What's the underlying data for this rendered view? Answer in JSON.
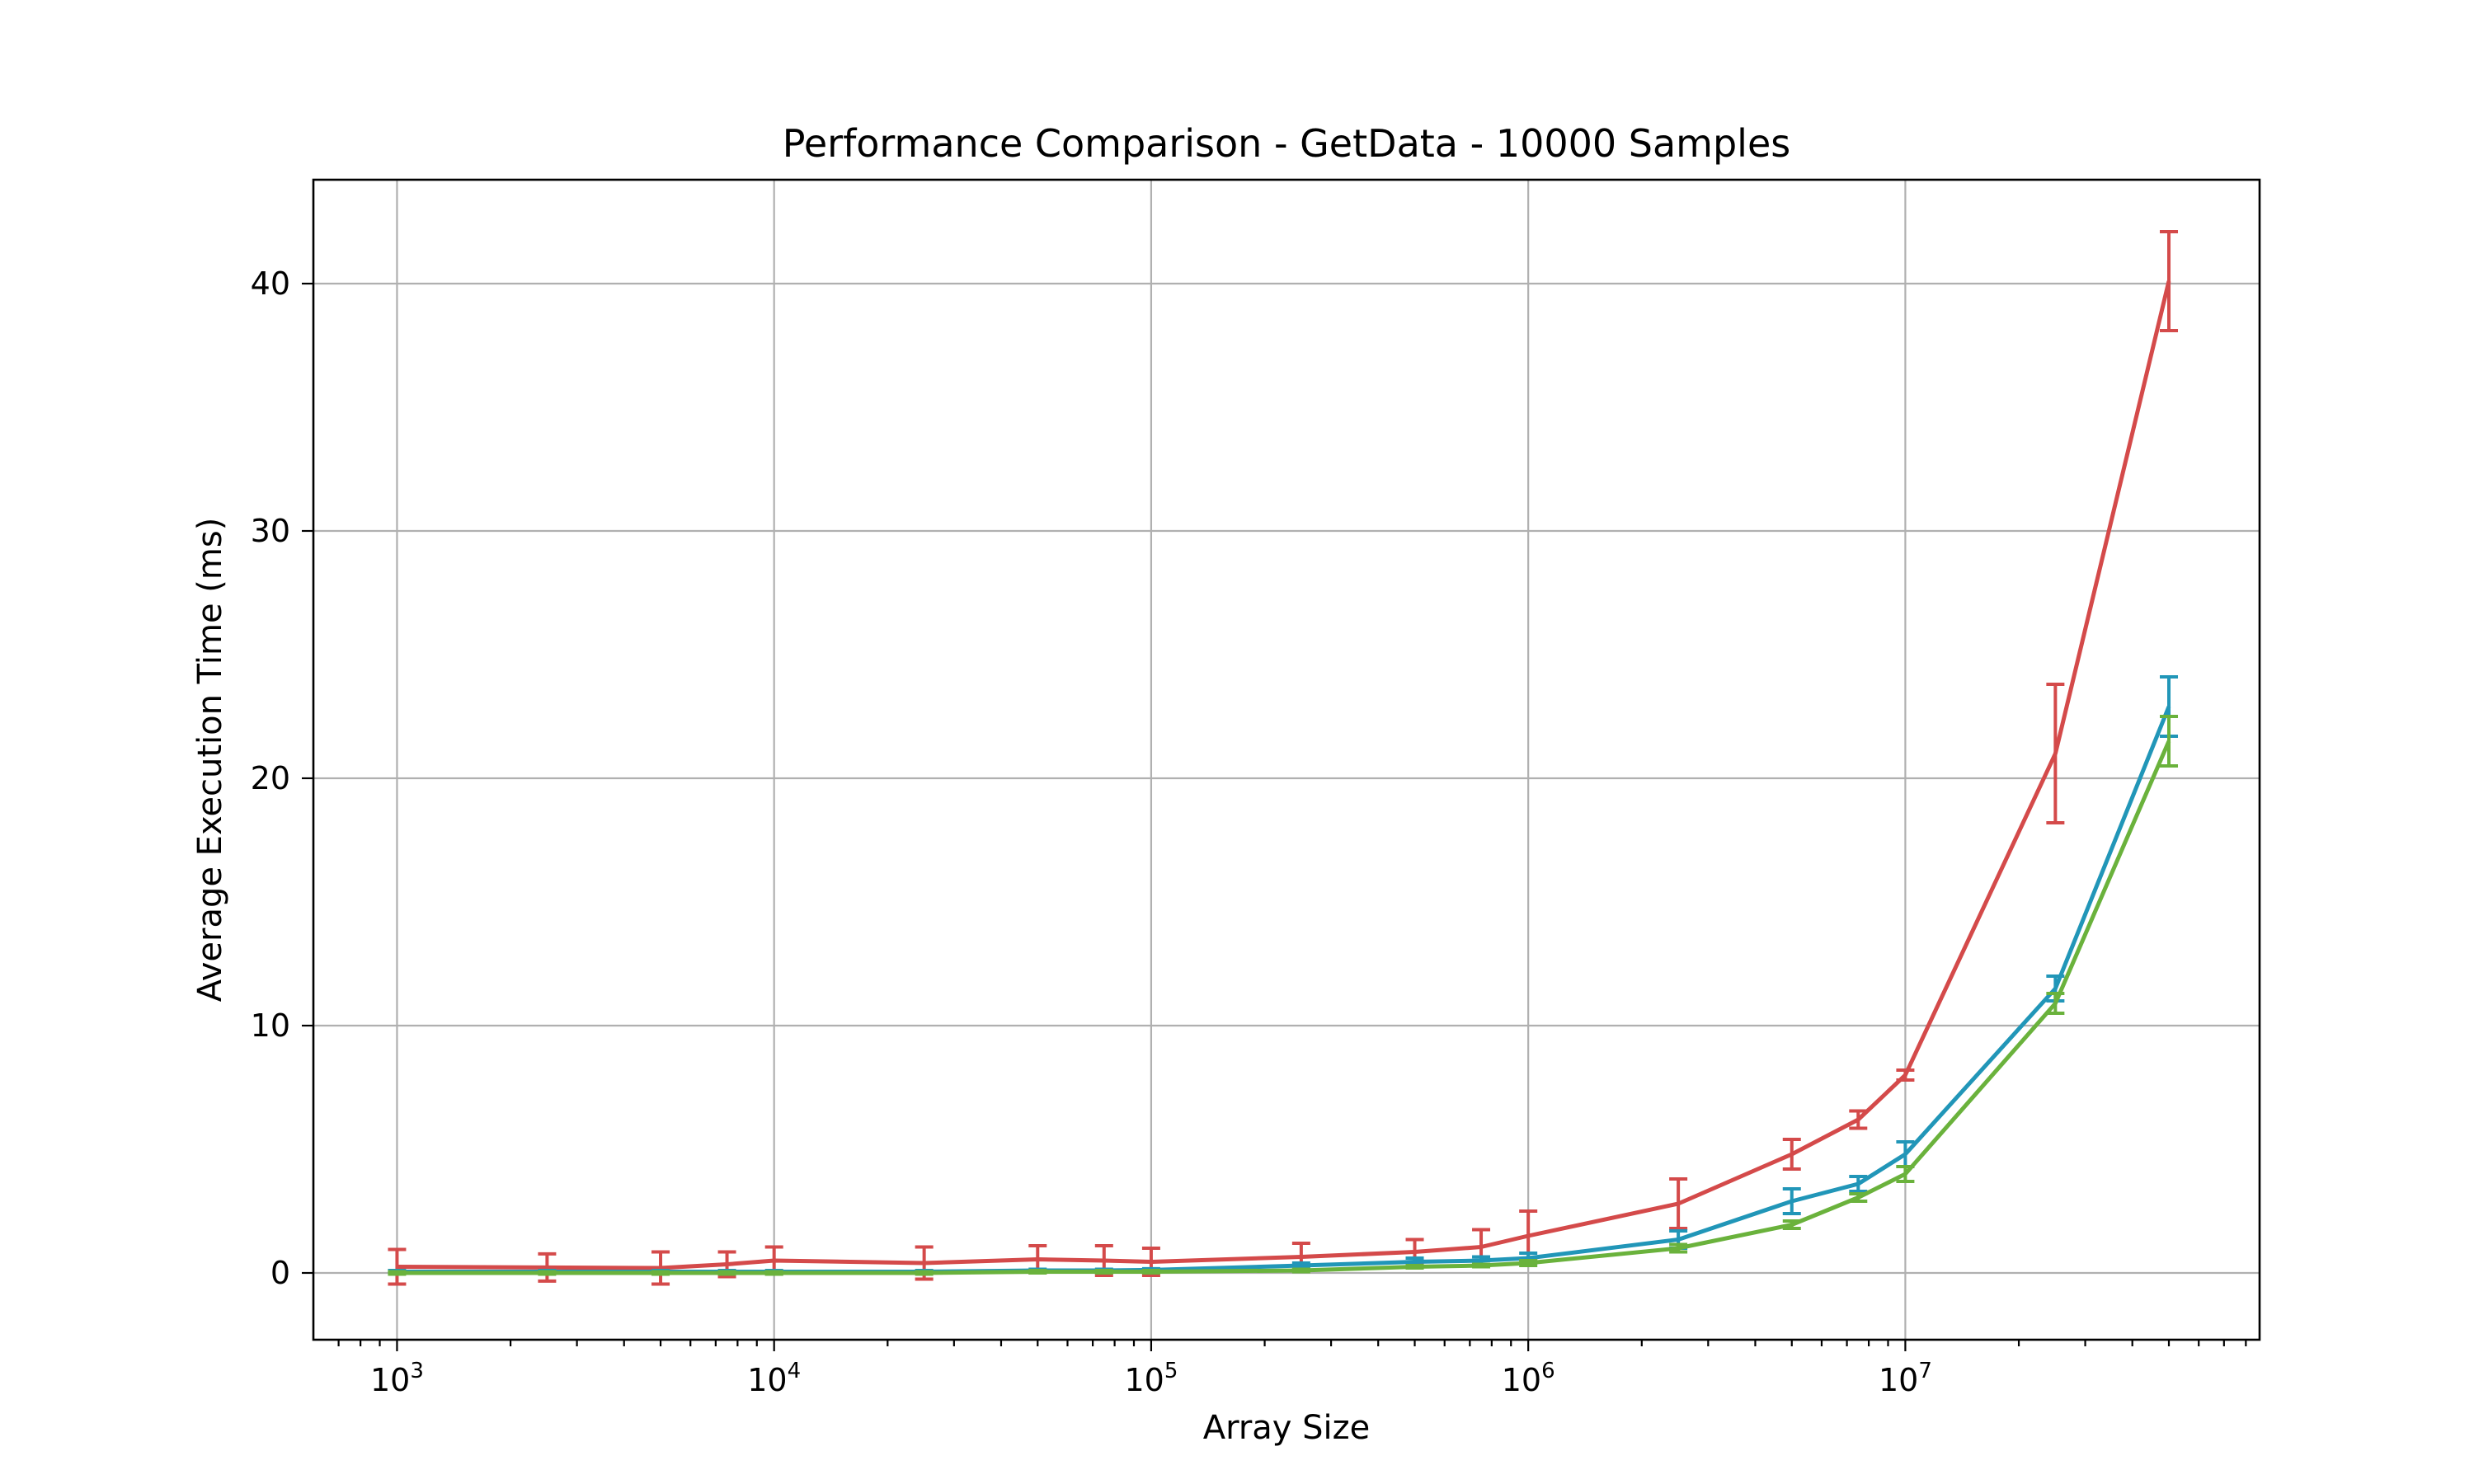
{
  "chart_data": {
    "type": "line",
    "title": "Performance Comparison - GetData - 10000 Samples",
    "xlabel": "Array Size",
    "ylabel": "Average Execution Time (ms)",
    "x_scale": "log",
    "xlim": [
      600,
      87000000
    ],
    "ylim": [
      -2.7,
      44.2
    ],
    "grid": true,
    "error_bars": true,
    "x_ticks": [
      {
        "value": 1000,
        "base": "10",
        "exp": "3"
      },
      {
        "value": 10000,
        "base": "10",
        "exp": "4"
      },
      {
        "value": 100000,
        "base": "10",
        "exp": "5"
      },
      {
        "value": 1000000,
        "base": "10",
        "exp": "6"
      },
      {
        "value": 10000000,
        "base": "10",
        "exp": "7"
      }
    ],
    "y_ticks": [
      0,
      10,
      20,
      30,
      40
    ],
    "x": [
      1000,
      2500,
      5000,
      7500,
      10000,
      25000,
      50000,
      75000,
      100000,
      250000,
      500000,
      750000,
      1000000,
      2500000,
      5000000,
      7500000,
      10000000,
      25000000,
      50000000
    ],
    "series": [
      {
        "color": "#d44a4a",
        "values": [
          0.25,
          0.22,
          0.2,
          0.35,
          0.5,
          0.4,
          0.55,
          0.5,
          0.45,
          0.65,
          0.85,
          1.05,
          1.5,
          2.8,
          4.8,
          6.2,
          8.0,
          21.0,
          40.1
        ],
        "errors": [
          0.7,
          0.55,
          0.65,
          0.5,
          0.55,
          0.65,
          0.55,
          0.6,
          0.55,
          0.55,
          0.5,
          0.7,
          1.0,
          1.0,
          0.6,
          0.35,
          0.2,
          2.8,
          2.0
        ]
      },
      {
        "color": "#2196b8",
        "values": [
          0.05,
          0.05,
          0.05,
          0.05,
          0.05,
          0.05,
          0.1,
          0.1,
          0.12,
          0.3,
          0.45,
          0.5,
          0.6,
          1.35,
          2.9,
          3.6,
          4.8,
          11.5,
          22.9
        ],
        "errors": [
          0.05,
          0.05,
          0.05,
          0.05,
          0.05,
          0.05,
          0.05,
          0.05,
          0.05,
          0.1,
          0.15,
          0.15,
          0.2,
          0.35,
          0.5,
          0.3,
          0.5,
          0.5,
          1.2
        ]
      },
      {
        "color": "#6ab23c",
        "values": [
          0.0,
          0.0,
          0.0,
          0.0,
          0.0,
          0.0,
          0.05,
          0.05,
          0.05,
          0.1,
          0.25,
          0.3,
          0.4,
          1.0,
          1.95,
          3.05,
          4.0,
          10.9,
          21.5
        ],
        "errors": [
          0.05,
          0.05,
          0.05,
          0.05,
          0.05,
          0.05,
          0.05,
          0.05,
          0.05,
          0.05,
          0.05,
          0.05,
          0.1,
          0.15,
          0.15,
          0.15,
          0.3,
          0.4,
          1.0
        ]
      }
    ]
  }
}
